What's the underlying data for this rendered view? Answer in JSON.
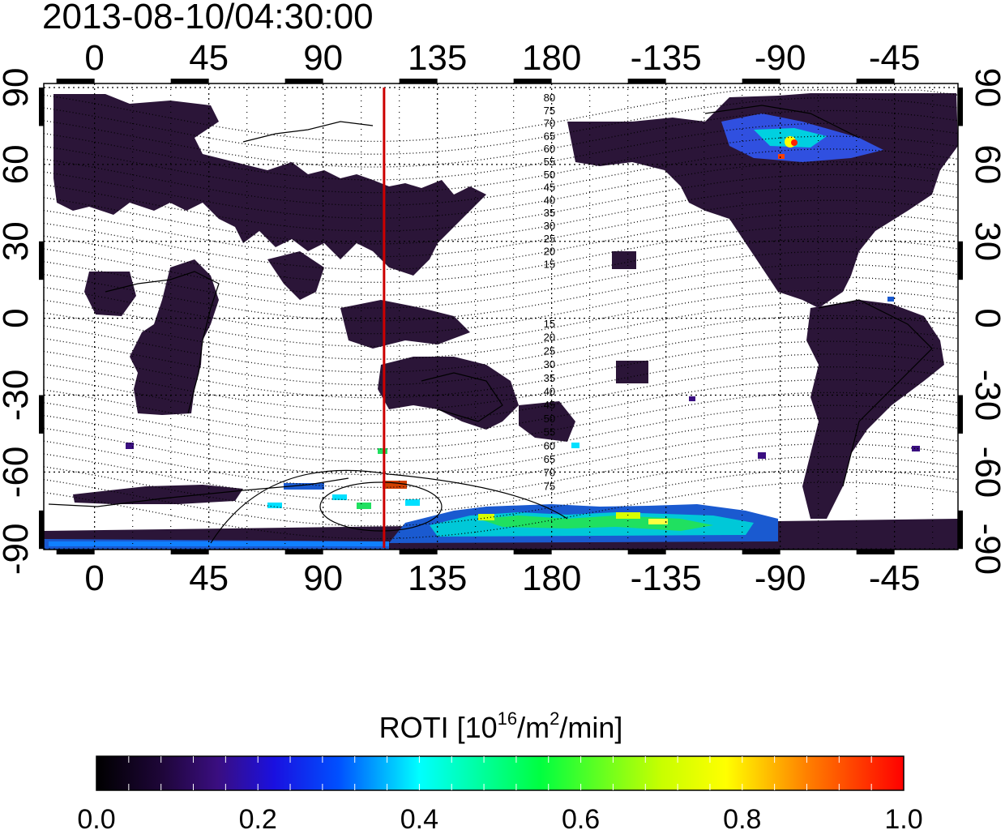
{
  "timestamp": "2013-08-10/04:30:00",
  "map": {
    "lon_ticks": [
      "0",
      "45",
      "90",
      "135",
      "180",
      "-135",
      "-90",
      "-45"
    ],
    "lat_ticks": [
      "90",
      "60",
      "30",
      "0",
      "-30",
      "-60",
      "-90"
    ],
    "contour_labels_north": [
      "80",
      "75",
      "70",
      "65",
      "60",
      "55",
      "50",
      "45",
      "40",
      "35",
      "30",
      "25",
      "20",
      "15"
    ],
    "contour_labels_south": [
      "15",
      "20",
      "25",
      "30",
      "35",
      "40",
      "45",
      "50",
      "55",
      "60",
      "65",
      "70",
      "75"
    ],
    "meridian_line_lon": 114,
    "meridian_line_color": "#cc0000"
  },
  "colorbar": {
    "title_main": "ROTI  [10",
    "title_sup1": "16",
    "title_mid": "/m",
    "title_sup2": "2",
    "title_end": "/min]",
    "ticks": [
      "0.0",
      "0.2",
      "0.4",
      "0.6",
      "0.8",
      "1.0"
    ],
    "stops": [
      "#000000",
      "#2a0a4a",
      "#3b0fa0",
      "#0000ff",
      "#00ffff",
      "#00ff00",
      "#ffff00",
      "#ff7f00",
      "#ff0000"
    ]
  }
}
